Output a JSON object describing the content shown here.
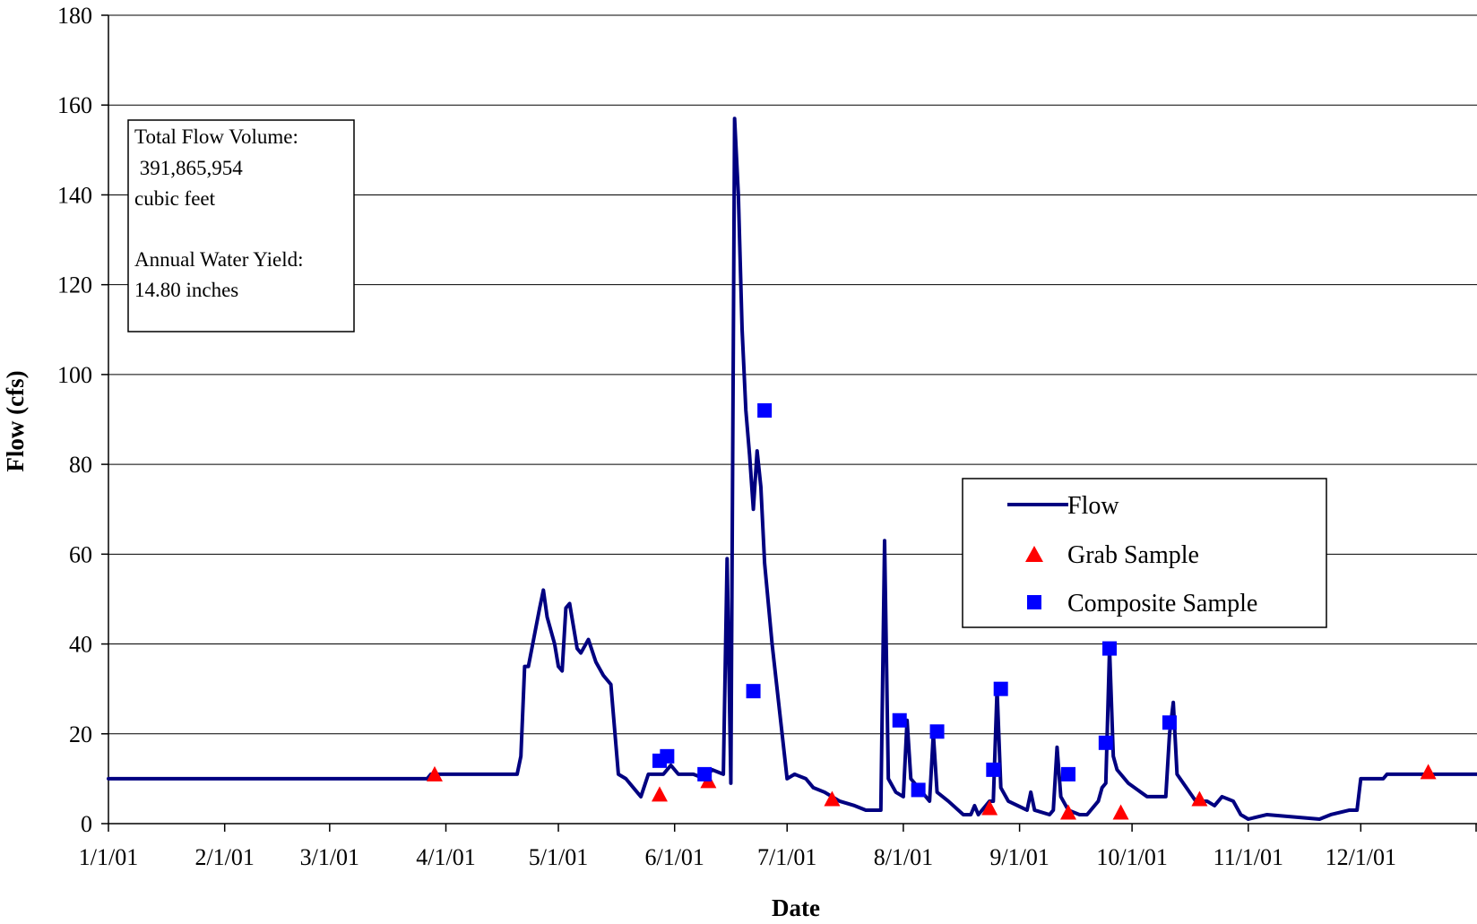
{
  "chart_data": {
    "type": "line",
    "title": "",
    "xlabel": "Date",
    "ylabel": "Flow (cfs)",
    "x_tick_labels": [
      "1/1/01",
      "2/1/01",
      "3/1/01",
      "4/1/01",
      "5/1/01",
      "6/1/01",
      "7/1/01",
      "8/1/01",
      "9/1/01",
      "10/1/01",
      "11/1/01",
      "12/1/01"
    ],
    "x_range": [
      "2001-01-01",
      "2002-01-01"
    ],
    "ylim": [
      0,
      180
    ],
    "y_ticks": [
      0,
      20,
      40,
      60,
      80,
      100,
      120,
      140,
      160,
      180
    ],
    "grid": "horizontal major gridlines",
    "legend_position": "right",
    "colors": {
      "flow": "#000080",
      "grab": "#ff0000",
      "composite": "#0000ff"
    },
    "series": [
      {
        "name": "Flow",
        "marker": "line",
        "points": [
          [
            "2001-01-01",
            10
          ],
          [
            "2001-03-27",
            10
          ],
          [
            "2001-03-28",
            11
          ],
          [
            "2001-04-20",
            11
          ],
          [
            "2001-04-21",
            15
          ],
          [
            "2001-04-22",
            35
          ],
          [
            "2001-04-23",
            35
          ],
          [
            "2001-04-26",
            48
          ],
          [
            "2001-04-27",
            52
          ],
          [
            "2001-04-28",
            46
          ],
          [
            "2001-04-30",
            40
          ],
          [
            "2001-05-01",
            35
          ],
          [
            "2001-05-02",
            34
          ],
          [
            "2001-05-03",
            48
          ],
          [
            "2001-05-04",
            49
          ],
          [
            "2001-05-06",
            39
          ],
          [
            "2001-05-07",
            38
          ],
          [
            "2001-05-09",
            41
          ],
          [
            "2001-05-11",
            36
          ],
          [
            "2001-05-13",
            33
          ],
          [
            "2001-05-15",
            31
          ],
          [
            "2001-05-17",
            11
          ],
          [
            "2001-05-19",
            10
          ],
          [
            "2001-05-22",
            7
          ],
          [
            "2001-05-23",
            6
          ],
          [
            "2001-05-25",
            11
          ],
          [
            "2001-05-29",
            11
          ],
          [
            "2001-05-31",
            13
          ],
          [
            "2001-06-02",
            11
          ],
          [
            "2001-06-06",
            11
          ],
          [
            "2001-06-09",
            10
          ],
          [
            "2001-06-11",
            12
          ],
          [
            "2001-06-14",
            11
          ],
          [
            "2001-06-15",
            59
          ],
          [
            "2001-06-16",
            9
          ],
          [
            "2001-06-17",
            157
          ],
          [
            "2001-06-18",
            140
          ],
          [
            "2001-06-19",
            110
          ],
          [
            "2001-06-20",
            92
          ],
          [
            "2001-06-21",
            82
          ],
          [
            "2001-06-22",
            70
          ],
          [
            "2001-06-23",
            83
          ],
          [
            "2001-06-24",
            75
          ],
          [
            "2001-06-25",
            58
          ],
          [
            "2001-06-27",
            40
          ],
          [
            "2001-06-29",
            25
          ],
          [
            "2001-07-01",
            10
          ],
          [
            "2001-07-03",
            11
          ],
          [
            "2001-07-06",
            10
          ],
          [
            "2001-07-08",
            8
          ],
          [
            "2001-07-11",
            7
          ],
          [
            "2001-07-15",
            5
          ],
          [
            "2001-07-19",
            4
          ],
          [
            "2001-07-22",
            3
          ],
          [
            "2001-07-26",
            3
          ],
          [
            "2001-07-27",
            63
          ],
          [
            "2001-07-28",
            10
          ],
          [
            "2001-07-30",
            7
          ],
          [
            "2001-08-01",
            6
          ],
          [
            "2001-08-02",
            23
          ],
          [
            "2001-08-03",
            10
          ],
          [
            "2001-08-05",
            8
          ],
          [
            "2001-08-08",
            5
          ],
          [
            "2001-08-09",
            20
          ],
          [
            "2001-08-10",
            7
          ],
          [
            "2001-08-13",
            5
          ],
          [
            "2001-08-17",
            2
          ],
          [
            "2001-08-19",
            2
          ],
          [
            "2001-08-20",
            4
          ],
          [
            "2001-08-21",
            2
          ],
          [
            "2001-08-24",
            5
          ],
          [
            "2001-08-25",
            5
          ],
          [
            "2001-08-26",
            30
          ],
          [
            "2001-08-27",
            8
          ],
          [
            "2001-08-29",
            5
          ],
          [
            "2001-09-03",
            3
          ],
          [
            "2001-09-04",
            7
          ],
          [
            "2001-09-05",
            3
          ],
          [
            "2001-09-09",
            2
          ],
          [
            "2001-09-10",
            3
          ],
          [
            "2001-09-11",
            17
          ],
          [
            "2001-09-12",
            6
          ],
          [
            "2001-09-14",
            3
          ],
          [
            "2001-09-17",
            2
          ],
          [
            "2001-09-19",
            2
          ],
          [
            "2001-09-22",
            5
          ],
          [
            "2001-09-23",
            8
          ],
          [
            "2001-09-24",
            9
          ],
          [
            "2001-09-25",
            39
          ],
          [
            "2001-09-26",
            15
          ],
          [
            "2001-09-27",
            12
          ],
          [
            "2001-09-30",
            9
          ],
          [
            "2001-10-05",
            6
          ],
          [
            "2001-10-10",
            6
          ],
          [
            "2001-10-11",
            20
          ],
          [
            "2001-10-12",
            27
          ],
          [
            "2001-10-13",
            11
          ],
          [
            "2001-10-18",
            5
          ],
          [
            "2001-10-21",
            5
          ],
          [
            "2001-10-23",
            4
          ],
          [
            "2001-10-25",
            6
          ],
          [
            "2001-10-28",
            5
          ],
          [
            "2001-10-30",
            2
          ],
          [
            "2001-11-01",
            1
          ],
          [
            "2001-11-06",
            2
          ],
          [
            "2001-11-20",
            1
          ],
          [
            "2001-11-23",
            2
          ],
          [
            "2001-11-28",
            3
          ],
          [
            "2001-11-30",
            3
          ],
          [
            "2001-12-01",
            10
          ],
          [
            "2001-12-07",
            10
          ],
          [
            "2001-12-08",
            11
          ],
          [
            "2002-01-01",
            11
          ]
        ]
      },
      {
        "name": "Grab Sample",
        "marker": "triangle",
        "points": [
          [
            "2001-03-29",
            11
          ],
          [
            "2001-05-28",
            6.5
          ],
          [
            "2001-06-10",
            9.5
          ],
          [
            "2001-07-13",
            5.5
          ],
          [
            "2001-08-24",
            3.5
          ],
          [
            "2001-09-14",
            2.5
          ],
          [
            "2001-09-28",
            2.5
          ],
          [
            "2001-10-19",
            5.5
          ],
          [
            "2001-12-19",
            11.5
          ]
        ]
      },
      {
        "name": "Composite Sample",
        "marker": "square",
        "points": [
          [
            "2001-05-28",
            14
          ],
          [
            "2001-05-30",
            15
          ],
          [
            "2001-06-09",
            11
          ],
          [
            "2001-06-22",
            29.5
          ],
          [
            "2001-06-25",
            92
          ],
          [
            "2001-07-31",
            23
          ],
          [
            "2001-08-05",
            7.5
          ],
          [
            "2001-08-10",
            20.5
          ],
          [
            "2001-08-25",
            12
          ],
          [
            "2001-08-27",
            30
          ],
          [
            "2001-09-14",
            11
          ],
          [
            "2001-09-24",
            18
          ],
          [
            "2001-09-25",
            39
          ],
          [
            "2001-10-11",
            22.5
          ]
        ]
      }
    ],
    "annotation": {
      "line1": "Total Flow Volume:",
      "line2": " 391,865,954",
      "line3": "cubic feet",
      "line4": "Annual Water Yield:",
      "line5": "14.80 inches"
    }
  }
}
